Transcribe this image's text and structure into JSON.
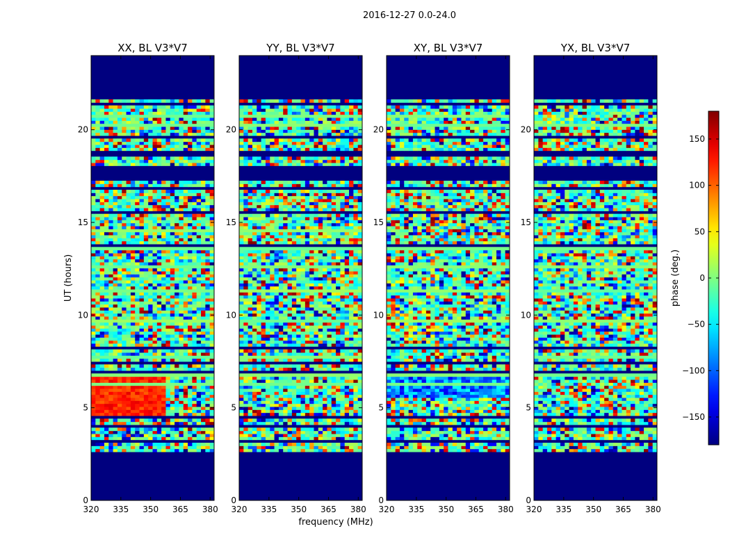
{
  "figure_title": "2016-12-27 0.0-24.0",
  "chart_data": {
    "type": "heatmap",
    "suptitle": "2016-12-27 0.0-24.0",
    "xlabel": "frequency (MHz)",
    "ylabel": "UT (hours)",
    "xlim": [
      320,
      382
    ],
    "ylim": [
      0,
      24
    ],
    "xticks": [
      320,
      335,
      350,
      365,
      380
    ],
    "yticks": [
      0,
      5,
      10,
      15,
      20
    ],
    "colormap": "jet",
    "colorbar": {
      "label": "phase (deg.)",
      "range": [
        -180,
        180
      ],
      "ticks": [
        -150,
        -100,
        -50,
        0,
        50,
        100,
        150
      ]
    },
    "panels": [
      {
        "title": "XX, BL V3*V7",
        "pol": "XX"
      },
      {
        "title": "YY, BL V3*V7",
        "pol": "YY"
      },
      {
        "title": "XY, BL V3*V7",
        "pol": "XY"
      },
      {
        "title": "YX, BL V3*V7",
        "pol": "YX"
      }
    ],
    "data_coverage_hours": [
      2.3,
      21.8
    ],
    "masked_value_hours": [
      [
        0,
        2.3
      ],
      [
        21.8,
        24
      ],
      [
        18.6,
        18.9
      ],
      [
        17.3,
        18.1
      ],
      [
        15.4,
        15.6
      ],
      [
        10.4,
        10.5
      ]
    ]
  },
  "colors": {
    "masked": "#00007f",
    "frame": "#000000"
  }
}
